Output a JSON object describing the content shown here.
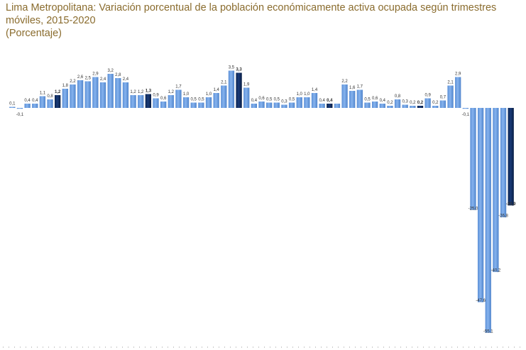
{
  "chart_data": {
    "type": "bar",
    "title_lines": [
      "Lima Metropolitana: Variación porcentual de la población económicamente activa ocupada según trimestres",
      "móviles, 2015-2020",
      "(Porcentaje)"
    ],
    "xlabel": "",
    "ylabel": "",
    "ylim": [
      -56,
      4
    ],
    "grid": false,
    "legend": "none",
    "colors": {
      "normal": "#6a9fe0",
      "highlight": "#0d2a5c"
    },
    "values": [
      0.1,
      -0.1,
      0.4,
      0.4,
      1.1,
      0.8,
      1.2,
      1.8,
      2.2,
      2.6,
      2.5,
      2.9,
      2.4,
      3.2,
      2.8,
      2.4,
      1.2,
      1.2,
      1.3,
      0.9,
      0.6,
      1.2,
      1.7,
      1.0,
      0.5,
      0.5,
      1.0,
      1.4,
      2.1,
      3.5,
      3.3,
      1.9,
      0.4,
      0.6,
      0.5,
      0.5,
      0.3,
      0.5,
      1.0,
      1.0,
      1.4,
      0.4,
      0.4,
      0.4,
      2.2,
      1.6,
      1.7,
      0.5,
      0.6,
      0.4,
      0.2,
      0.8,
      0.3,
      0.2,
      0.2,
      0.9,
      0.2,
      0.7,
      2.1,
      2.9,
      -0.1,
      -25.0,
      -47.6,
      -55.1,
      -40.2,
      -26.8,
      -23.9
    ],
    "labels": [
      "0,1",
      "-0,1",
      "0,4",
      "0,4",
      "1,1",
      "0,8",
      "1,2",
      "1,8",
      "2,2",
      "2,6",
      "2,5",
      "2,9",
      "2,4",
      "3,2",
      "2,8",
      "2,4",
      "1,2",
      "1,2",
      "1,3",
      "0,9",
      "0,6",
      "1,2",
      "1,7",
      "1,0",
      "0,5",
      "0,5",
      "1,0",
      "1,4",
      "2,1",
      "3,5",
      "3,3",
      "1,9",
      "0,4",
      "0,6",
      "0,5",
      "0,5",
      "0,3",
      "0,5",
      "1,0",
      "1,0",
      "1,4",
      "0,4",
      "0,4",
      "",
      "2,2",
      "1,6",
      "1,7",
      "0,5",
      "0,6",
      "0,4",
      "0,2",
      "0,8",
      "0,3",
      "0,2",
      "0,2",
      "0,9",
      "0,2",
      "0,7",
      "2,1",
      "2,9",
      "-0,1",
      "-25,0",
      "-47.6",
      "-55.1",
      "-40,2",
      "-26,8",
      "-23,9"
    ],
    "highlight": [
      6,
      18,
      30,
      42,
      54,
      66
    ]
  }
}
